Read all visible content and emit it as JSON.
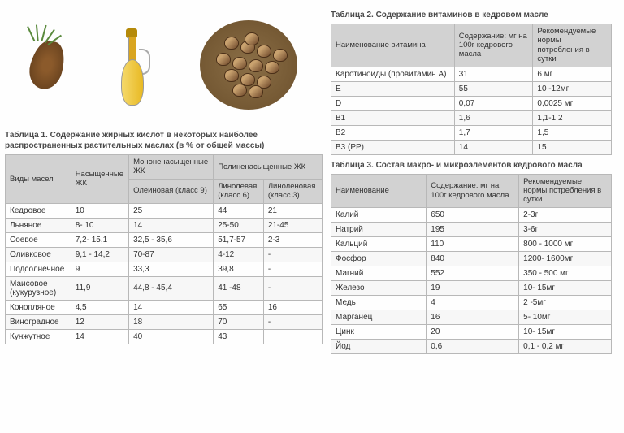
{
  "table1": {
    "title": "Таблица 1. Содержание жирных кислот в некоторых наиболее распространенных растительных маслах (в % от общей массы)",
    "headers": {
      "oil_types": "Виды масел",
      "saturated": "Насыщенные ЖК",
      "mono": "Мононенасыщенные ЖК",
      "poly": "Полиненасыщенные ЖК",
      "oleic": "Олеиновая (класс 9)",
      "linoleic": "Линолевая (класс 6)",
      "linolenic": "Линоленовая (класс 3)"
    },
    "rows": [
      {
        "name": "Кедровое",
        "sat": "10",
        "oleic": "25",
        "linoleic": "44",
        "linolenic": "21"
      },
      {
        "name": "Льняное",
        "sat": "8- 10",
        "oleic": "14",
        "linoleic": "25-50",
        "linolenic": "21-45"
      },
      {
        "name": "Соевое",
        "sat": "7,2- 15,1",
        "oleic": "32,5 - 35,6",
        "linoleic": "51,7-57",
        "linolenic": "2-3"
      },
      {
        "name": "Оливковое",
        "sat": "9,1 - 14,2",
        "oleic": "70-87",
        "linoleic": "4-12",
        "linolenic": "-"
      },
      {
        "name": "Подсолнечное",
        "sat": "9",
        "oleic": "33,3",
        "linoleic": "39,8",
        "linolenic": "-"
      },
      {
        "name": "Маисовое (кукурузное)",
        "sat": "11,9",
        "oleic": "44,8 - 45,4",
        "linoleic": "41 -48",
        "linolenic": "-"
      },
      {
        "name": "Конопляное",
        "sat": "4,5",
        "oleic": "14",
        "linoleic": "65",
        "linolenic": "16"
      },
      {
        "name": "Виноградное",
        "sat": "12",
        "oleic": "18",
        "linoleic": "70",
        "linolenic": "-"
      },
      {
        "name": "Кунжутное",
        "sat": "14",
        "oleic": "40",
        "linoleic": "43",
        "linolenic": ""
      }
    ]
  },
  "table2": {
    "title": "Таблица 2. Содержание витаминов в кедровом масле",
    "headers": {
      "name": "Наименование витамина",
      "content": "Содержание: мг на 100г кедрового масла",
      "norm": "Рекомендуемые нормы потребления в сутки"
    },
    "rows": [
      {
        "name": "Каротиноиды (провитамин А)",
        "content": "31",
        "norm": "6 мг"
      },
      {
        "name": "Е",
        "content": "55",
        "norm": "10 -12мг"
      },
      {
        "name": "D",
        "content": "0,07",
        "norm": "0,0025 мг"
      },
      {
        "name": "В1",
        "content": "1,6",
        "norm": "1,1-1,2"
      },
      {
        "name": "В2",
        "content": "1,7",
        "norm": "1,5"
      },
      {
        "name": "В3 (РР)",
        "content": "14",
        "norm": "15"
      }
    ]
  },
  "table3": {
    "title": "Таблица 3. Состав макро- и микроэлементов кедрового масла",
    "headers": {
      "name": "Наименование",
      "content": "Содержание: мг на 100г кедрового масла",
      "norm": "Рекомендуемые нормы потребления в сутки"
    },
    "rows": [
      {
        "name": "Калий",
        "content": "650",
        "norm": "2-3г"
      },
      {
        "name": "Натрий",
        "content": "195",
        "norm": "3-6г"
      },
      {
        "name": "Кальций",
        "content": "110",
        "norm": "800 - 1000 мг"
      },
      {
        "name": "Фосфор",
        "content": "840",
        "norm": "1200- 1600мг"
      },
      {
        "name": "Магний",
        "content": "552",
        "norm": "350 - 500 мг"
      },
      {
        "name": "Железо",
        "content": "19",
        "norm": "10- 15мг"
      },
      {
        "name": "Медь",
        "content": "4",
        "norm": "2 -5мг"
      },
      {
        "name": "Марганец",
        "content": "16",
        "norm": "5- 10мг"
      },
      {
        "name": "Цинк",
        "content": "20",
        "norm": "10- 15мг"
      },
      {
        "name": "Йод",
        "content": "0,6",
        "norm": "0,1 - 0,2 мг"
      }
    ]
  }
}
